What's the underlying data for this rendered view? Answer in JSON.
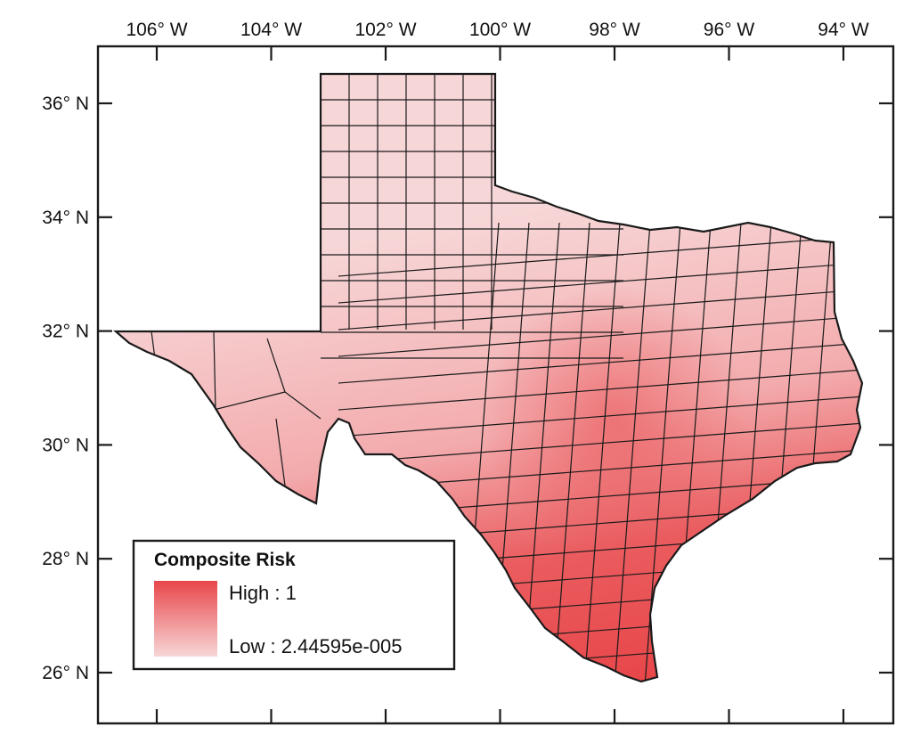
{
  "map": {
    "region": "Texas counties",
    "top_axis_labels": [
      "106° W",
      "104° W",
      "102° W",
      "100° W",
      "98° W",
      "96° W",
      "94° W"
    ],
    "left_axis_labels": [
      "36° N",
      "34° N",
      "32° N",
      "30° N",
      "28° N",
      "26° N"
    ],
    "colors": {
      "high": "#e8474a",
      "low": "#f7d6d7",
      "outline": "#1a1a1a",
      "frame": "#1a1a1a"
    }
  },
  "legend": {
    "title": "Composite Risk",
    "high_label": "High : 1",
    "low_label": "Low : 2.44595e-005"
  }
}
